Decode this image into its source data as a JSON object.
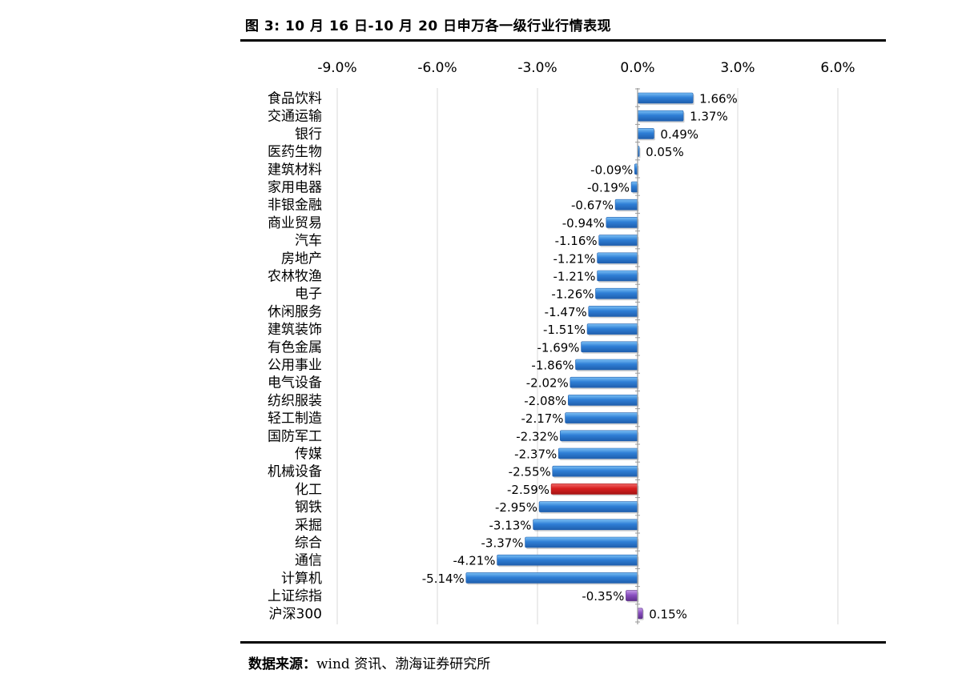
{
  "figure": {
    "title": "图 3:  10 月 16 日-10 月 20 日申万各一级行业行情表现",
    "source_label": "数据来源：",
    "source_text": "wind 资讯、渤海证券研究所"
  },
  "colors": {
    "blue": "#2f7fd6",
    "blue_light": "#7cc0f5",
    "blue_dark": "#1f5fae",
    "red": "#d81f1f",
    "red_light": "#f06a6a",
    "purple": "#8a4fbf",
    "purple_light": "#c39ae6",
    "grid": "#d8d8d8",
    "axis": "#9a9a9a"
  },
  "chart_data": {
    "type": "bar",
    "orientation": "horizontal",
    "title": "",
    "xlabel": "",
    "ylabel": "",
    "xlim": [
      -9.0,
      6.0
    ],
    "xticks": [
      -9.0,
      -6.0,
      -3.0,
      0.0,
      3.0,
      6.0
    ],
    "xtick_labels": [
      "-9.0%",
      "-6.0%",
      "-3.0%",
      "0.0%",
      "3.0%",
      "6.0%"
    ],
    "axis_position": "top",
    "grid": true,
    "categories": [
      "食品饮料",
      "交通运输",
      "银行",
      "医药生物",
      "建筑材料",
      "家用电器",
      "非银金融",
      "商业贸易",
      "汽车",
      "房地产",
      "农林牧渔",
      "电子",
      "休闲服务",
      "建筑装饰",
      "有色金属",
      "公用事业",
      "电气设备",
      "纺织服装",
      "轻工制造",
      "国防军工",
      "传媒",
      "机械设备",
      "化工",
      "钢铁",
      "采掘",
      "综合",
      "通信",
      "计算机",
      "上证综指",
      "沪深300"
    ],
    "values": [
      1.66,
      1.37,
      0.49,
      0.05,
      -0.09,
      -0.19,
      -0.67,
      -0.94,
      -1.16,
      -1.21,
      -1.21,
      -1.26,
      -1.47,
      -1.51,
      -1.69,
      -1.86,
      -2.02,
      -2.08,
      -2.17,
      -2.32,
      -2.37,
      -2.55,
      -2.59,
      -2.95,
      -3.13,
      -3.37,
      -4.21,
      -5.14,
      -0.35,
      0.15
    ],
    "value_labels": [
      "1.66%",
      "1.37%",
      "0.49%",
      "0.05%",
      "-0.09%",
      "-0.19%",
      "-0.67%",
      "-0.94%",
      "-1.16%",
      "-1.21%",
      "-1.21%",
      "-1.26%",
      "-1.47%",
      "-1.51%",
      "-1.69%",
      "-1.86%",
      "-2.02%",
      "-2.08%",
      "-2.17%",
      "-2.32%",
      "-2.37%",
      "-2.55%",
      "-2.59%",
      "-2.95%",
      "-3.13%",
      "-3.37%",
      "-4.21%",
      "-5.14%",
      "-0.35%",
      "0.15%"
    ],
    "bar_colors": [
      "blue",
      "blue",
      "blue",
      "blue",
      "blue",
      "blue",
      "blue",
      "blue",
      "blue",
      "blue",
      "blue",
      "blue",
      "blue",
      "blue",
      "blue",
      "blue",
      "blue",
      "blue",
      "blue",
      "blue",
      "blue",
      "blue",
      "red",
      "blue",
      "blue",
      "blue",
      "blue",
      "blue",
      "purple",
      "purple"
    ]
  }
}
